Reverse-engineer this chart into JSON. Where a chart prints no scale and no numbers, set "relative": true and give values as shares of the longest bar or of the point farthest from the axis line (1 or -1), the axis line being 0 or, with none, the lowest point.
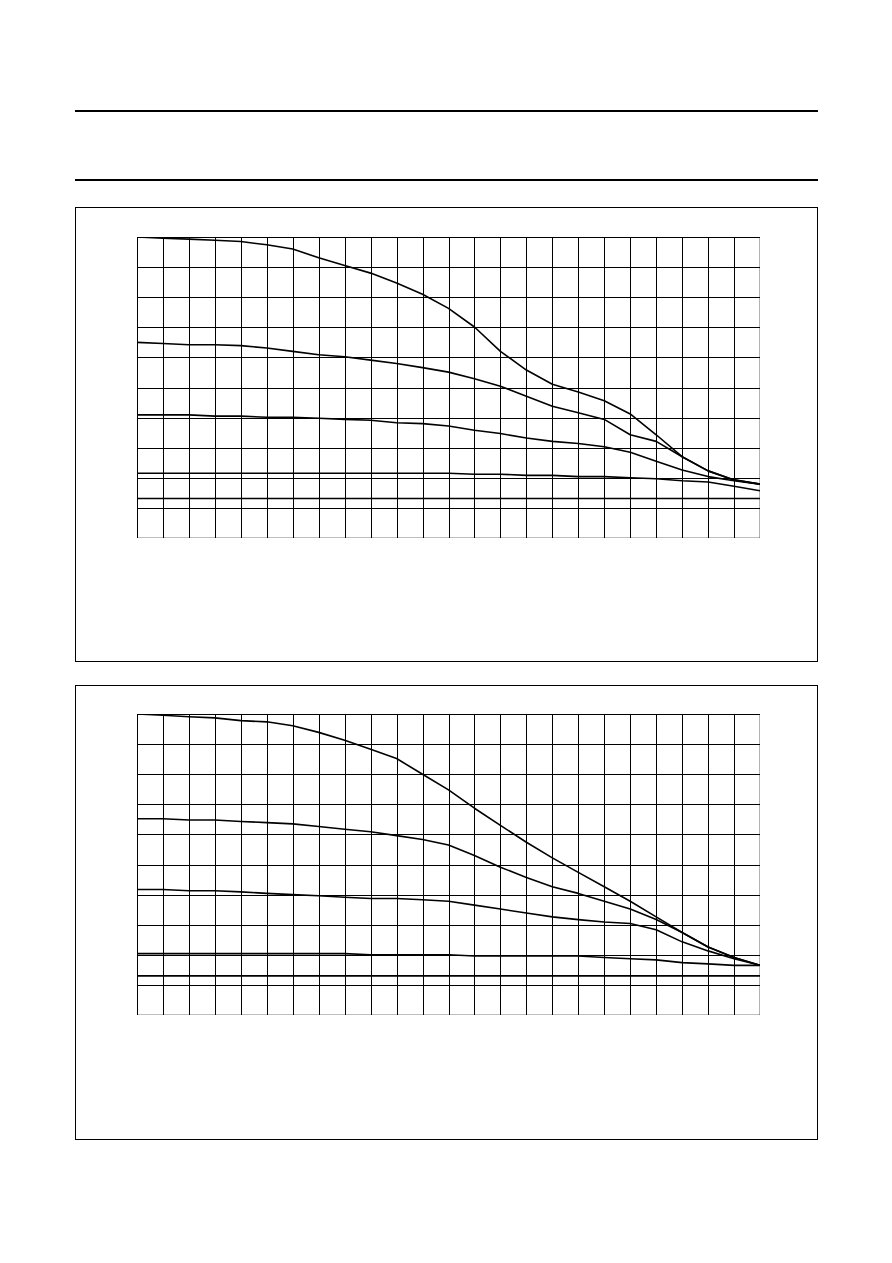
{
  "chart_data": [
    {
      "type": "line",
      "relative": true,
      "grid": true,
      "tick_labels": false,
      "line_style": "solid",
      "categories": [
        null,
        null,
        null,
        null,
        null,
        null,
        null,
        null,
        null,
        null,
        null,
        null,
        null,
        null,
        null,
        null,
        null,
        null,
        null,
        null,
        null,
        null,
        null,
        null,
        null
      ],
      "series": [
        {
          "color": "#000000",
          "values": [
            1,
            0.996,
            0.993,
            0.989,
            0.985,
            0.974,
            0.96,
            0.931,
            0.905,
            0.88,
            0.847,
            0.81,
            0.763,
            0.701,
            0.62,
            0.558,
            0.511,
            0.485,
            0.456,
            0.412,
            0.343,
            0.27,
            0.223,
            0.193,
            0.179
          ]
        },
        {
          "color": "#000000",
          "values": [
            0.65,
            0.646,
            0.642,
            0.642,
            0.639,
            0.631,
            0.62,
            0.609,
            0.602,
            0.591,
            0.58,
            0.566,
            0.551,
            0.529,
            0.504,
            0.471,
            0.438,
            0.416,
            0.394,
            0.343,
            0.321,
            0.27,
            0.223,
            0.193,
            0.179
          ]
        },
        {
          "color": "#000000",
          "values": [
            0.409,
            0.409,
            0.409,
            0.405,
            0.405,
            0.401,
            0.401,
            0.398,
            0.394,
            0.391,
            0.383,
            0.38,
            0.372,
            0.358,
            0.347,
            0.332,
            0.321,
            0.314,
            0.303,
            0.285,
            0.255,
            0.226,
            0.204,
            0.19,
            0.179
          ]
        },
        {
          "color": "#000000",
          "values": [
            0.215,
            0.215,
            0.215,
            0.215,
            0.215,
            0.215,
            0.215,
            0.215,
            0.215,
            0.215,
            0.215,
            0.215,
            0.215,
            0.212,
            0.212,
            0.208,
            0.208,
            0.204,
            0.204,
            0.2,
            0.197,
            0.19,
            0.186,
            0.172,
            0.157
          ]
        },
        {
          "color": "#000000",
          "values": [
            0.131,
            0.131,
            0.131,
            0.131,
            0.131,
            0.131,
            0.131,
            0.131,
            0.131,
            0.131,
            0.131,
            0.131,
            0.131,
            0.131,
            0.131,
            0.131,
            0.131,
            0.131,
            0.131,
            0.131,
            0.131,
            0.131,
            0.131,
            0.131,
            0.131
          ]
        }
      ]
    },
    {
      "type": "line",
      "relative": true,
      "grid": true,
      "tick_labels": false,
      "line_style": "solid",
      "categories": [
        null,
        null,
        null,
        null,
        null,
        null,
        null,
        null,
        null,
        null,
        null,
        null,
        null,
        null,
        null,
        null,
        null,
        null,
        null,
        null,
        null,
        null,
        null,
        null,
        null
      ],
      "series": [
        {
          "color": "#000000",
          "values": [
            1,
            0.996,
            0.991,
            0.987,
            0.978,
            0.974,
            0.961,
            0.939,
            0.913,
            0.883,
            0.852,
            0.8,
            0.748,
            0.687,
            0.63,
            0.574,
            0.522,
            0.474,
            0.426,
            0.378,
            0.326,
            0.274,
            0.226,
            0.191,
            0.165
          ]
        },
        {
          "color": "#000000",
          "values": [
            0.652,
            0.652,
            0.648,
            0.648,
            0.643,
            0.639,
            0.635,
            0.626,
            0.617,
            0.609,
            0.596,
            0.583,
            0.565,
            0.53,
            0.491,
            0.457,
            0.426,
            0.404,
            0.378,
            0.352,
            0.317,
            0.274,
            0.226,
            0.191,
            0.165
          ]
        },
        {
          "color": "#000000",
          "values": [
            0.417,
            0.417,
            0.413,
            0.413,
            0.409,
            0.404,
            0.4,
            0.396,
            0.391,
            0.387,
            0.387,
            0.383,
            0.378,
            0.365,
            0.352,
            0.339,
            0.326,
            0.317,
            0.309,
            0.304,
            0.283,
            0.243,
            0.213,
            0.187,
            0.165
          ]
        },
        {
          "color": "#000000",
          "values": [
            0.204,
            0.204,
            0.204,
            0.204,
            0.204,
            0.204,
            0.204,
            0.204,
            0.204,
            0.2,
            0.2,
            0.2,
            0.2,
            0.196,
            0.196,
            0.196,
            0.196,
            0.196,
            0.191,
            0.187,
            0.183,
            0.174,
            0.17,
            0.165,
            0.165
          ]
        },
        {
          "color": "#000000",
          "values": [
            0.13,
            0.13,
            0.13,
            0.13,
            0.13,
            0.13,
            0.13,
            0.13,
            0.13,
            0.13,
            0.13,
            0.13,
            0.13,
            0.13,
            0.13,
            0.13,
            0.13,
            0.13,
            0.13,
            0.13,
            0.13,
            0.13,
            0.13,
            0.13,
            0.13
          ]
        }
      ]
    }
  ]
}
